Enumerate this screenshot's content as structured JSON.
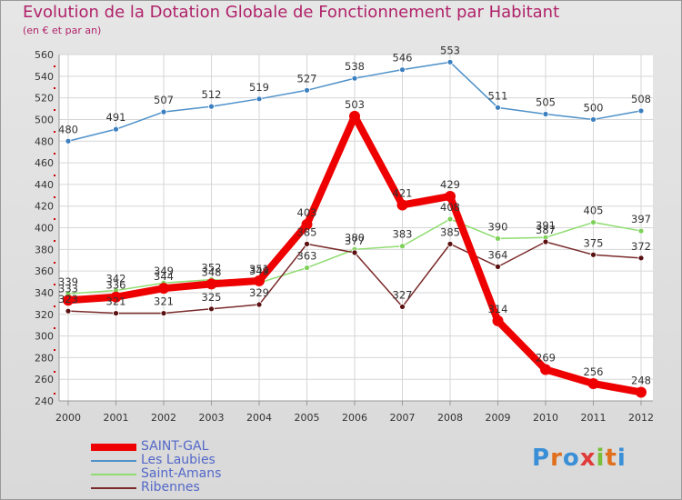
{
  "title": "Evolution de la Dotation Globale de Fonctionnement par Habitant",
  "subtitle": "(en € et par an)",
  "logo_text": "Proxiti",
  "chart_data": {
    "type": "line",
    "title": "Evolution de la Dotation Globale de Fonctionnement par Habitant",
    "ylabel": "(en € et par an)",
    "x": [
      "2000",
      "2001",
      "2002",
      "2003",
      "2004",
      "2005",
      "2006",
      "2007",
      "2008",
      "2009",
      "2010",
      "2011",
      "2012"
    ],
    "ylim": [
      240,
      560
    ],
    "yticks": [
      240,
      260,
      280,
      300,
      320,
      340,
      360,
      380,
      400,
      420,
      440,
      460,
      480,
      500,
      520,
      540,
      560
    ],
    "grid": true,
    "legend_position": "bottom-left",
    "series": [
      {
        "name": "SAINT-GAL",
        "color": "#ee0000",
        "values": [
          333,
          336,
          344,
          348,
          351,
          403,
          503,
          421,
          429,
          314,
          269,
          256,
          248
        ]
      },
      {
        "name": "Les Laubies",
        "color": "#4e91c9",
        "values": [
          480,
          491,
          507,
          512,
          519,
          527,
          538,
          546,
          553,
          511,
          505,
          500,
          508
        ]
      },
      {
        "name": "Saint-Amans",
        "color": "#8edc6e",
        "values": [
          339,
          342,
          349,
          352,
          349,
          363,
          380,
          383,
          408,
          390,
          391,
          405,
          397
        ]
      },
      {
        "name": "Ribennes",
        "color": "#6e1a1a",
        "values": [
          323,
          321,
          321,
          325,
          329,
          385,
          377,
          327,
          385,
          364,
          387,
          375,
          372
        ]
      }
    ],
    "data_labels": [
      [
        "333",
        "336",
        "344",
        "348",
        "351",
        "403",
        "503",
        "421",
        "429",
        "314",
        "269",
        "256",
        "248"
      ],
      [
        "480",
        "491",
        "507",
        "512",
        "519",
        "527",
        "538",
        "546",
        "553",
        "511",
        "505",
        "500",
        "508"
      ],
      [
        "339",
        "342",
        "349",
        "352",
        "349",
        "363",
        "380",
        "383",
        "408",
        "390",
        "391",
        "405",
        "397"
      ],
      [
        "323",
        "321",
        "321",
        "325",
        "329",
        "385",
        "377",
        "327",
        "385",
        "364",
        "387",
        "375",
        "372"
      ]
    ]
  }
}
